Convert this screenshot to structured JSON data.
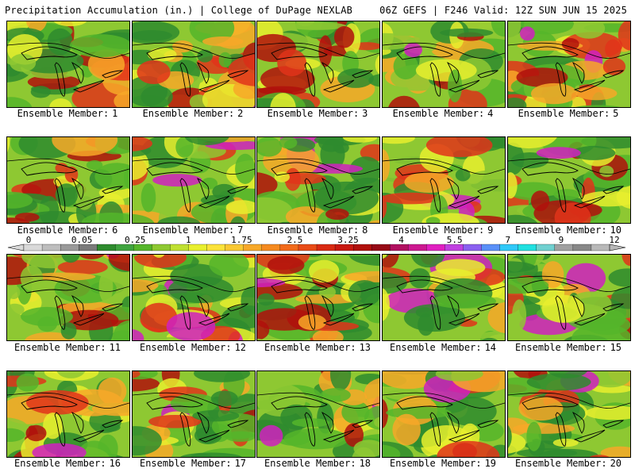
{
  "header": {
    "title_left": "Precipitation Accumulation (in.) | College of DuPage NEXLAB",
    "title_right": "06Z GEFS | F246 Valid: 12Z SUN JUN 15 2025"
  },
  "panel_caption_prefix": "Ensemble Member:",
  "members": [
    "1",
    "2",
    "3",
    "4",
    "5",
    "6",
    "7",
    "8",
    "9",
    "10",
    "11",
    "12",
    "13",
    "14",
    "15",
    "16",
    "17",
    "18",
    "19",
    "20"
  ],
  "colorbar": {
    "labels": [
      "0",
      "0.05",
      "0.25",
      "1",
      "1.75",
      "2.5",
      "3.25",
      "4",
      "5.5",
      "7",
      "9",
      "12"
    ],
    "colors": [
      "#d9d9d9",
      "#bdbdbd",
      "#999999",
      "#7a7a7a",
      "#2e8b2e",
      "#3fa33f",
      "#55b52a",
      "#8ec832",
      "#bfe032",
      "#e8ef2e",
      "#fbe23a",
      "#f9c832",
      "#f7a828",
      "#f58a1f",
      "#f26a1a",
      "#e84b16",
      "#d92a12",
      "#c81810",
      "#b0100c",
      "#960a16",
      "#b01060",
      "#cc1890",
      "#e020c0",
      "#c040e0",
      "#8a60f0",
      "#5a90f8",
      "#30c8f8",
      "#20e0e0",
      "#70d0d0",
      "#a0a0a0",
      "#888888",
      "#b8b8b8"
    ]
  },
  "map_colors": {
    "dark_green": "#2e8b2e",
    "green": "#55b52a",
    "light_green": "#8ec832",
    "yellow": "#e8ef2e",
    "orange": "#f7a828",
    "red": "#e0341a",
    "dark_red": "#b0100c",
    "magenta": "#d020c0",
    "gray": "#9a9a9a"
  }
}
